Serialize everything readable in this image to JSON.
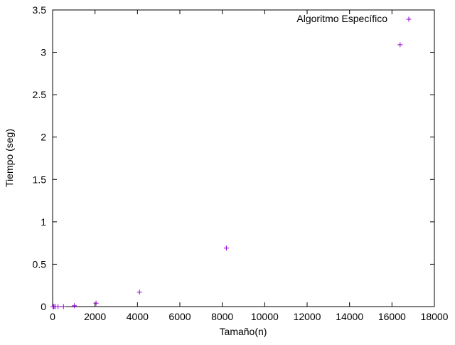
{
  "chart_data": {
    "type": "scatter",
    "title": "",
    "xlabel": "Tamaño(n)",
    "ylabel": "Tiempo (seg)",
    "xlim": [
      0,
      18000
    ],
    "ylim": [
      0,
      3.5
    ],
    "xticks": [
      0,
      2000,
      4000,
      6000,
      8000,
      10000,
      12000,
      14000,
      16000,
      18000
    ],
    "yticks": [
      0,
      0.5,
      1,
      1.5,
      2,
      2.5,
      3,
      3.5
    ],
    "xtick_labels": [
      "0",
      "2000",
      "4000",
      "6000",
      "8000",
      "10000",
      "12000",
      "14000",
      "16000",
      "18000"
    ],
    "ytick_labels": [
      "0",
      "0.5",
      "1",
      "1.5",
      "2",
      "2.5",
      "3",
      "3.5"
    ],
    "grid": false,
    "legend_position": "top-right",
    "marker": "+",
    "series": [
      {
        "name": "Algoritmo Específico",
        "color": "#9400d3",
        "x": [
          16,
          32,
          64,
          128,
          256,
          512,
          1024,
          2048,
          4096,
          8192,
          16384
        ],
        "y": [
          0.0,
          0.0,
          0.0,
          0.0,
          0.0,
          0.0,
          0.01,
          0.04,
          0.17,
          0.69,
          3.09
        ]
      }
    ],
    "legend": {
      "label": "Algoritmo Específico",
      "color": "#9400d3"
    }
  }
}
